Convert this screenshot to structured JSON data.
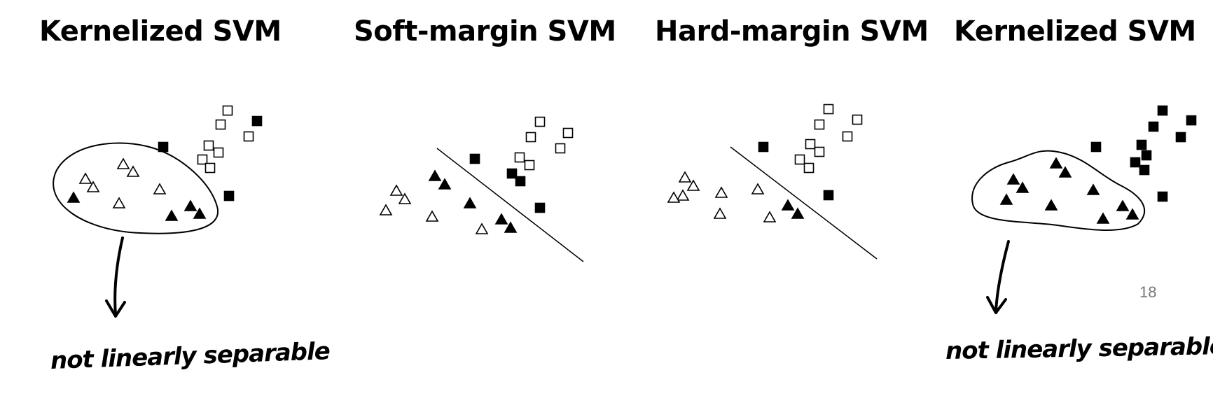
{
  "slide": {
    "titles": [
      "Kernelized SVM",
      "Soft-margin SVM",
      "Hard-margin SVM",
      "Kernelized SVM"
    ],
    "annotation": "not linearly separable",
    "page_number": "18"
  },
  "colors": {
    "ink": "#000000",
    "page_number": "#777777"
  },
  "icons": [
    "filled-triangle-marker",
    "hollow-triangle-marker",
    "filled-square-marker",
    "hollow-square-marker",
    "down-arrow-icon"
  ]
}
